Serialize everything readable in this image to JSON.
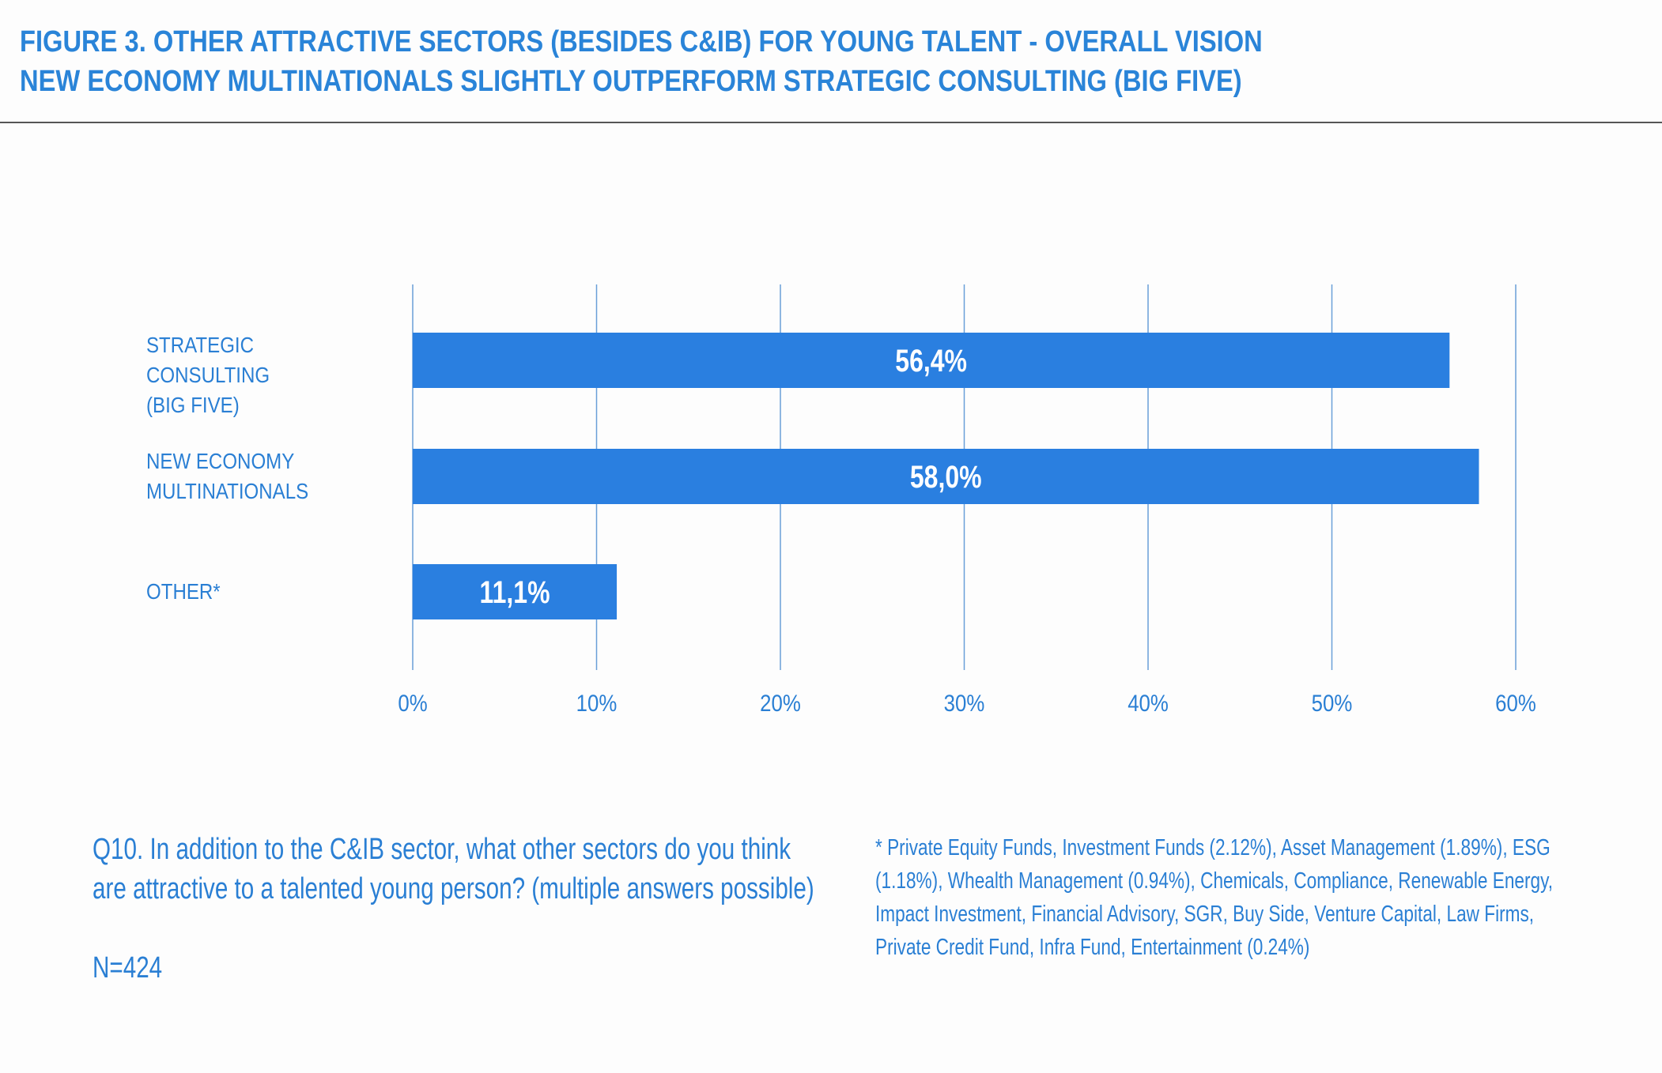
{
  "header": {
    "line1": "FIGURE 3. OTHER ATTRACTIVE SECTORS (BESIDES C&IB) FOR YOUNG TALENT - OVERALL VISION",
    "line2": "NEW ECONOMY MULTINATIONALS SLIGHTLY OUTPERFORM STRATEGIC CONSULTING (BIG FIVE)"
  },
  "colors": {
    "bar": "#2a7fe0",
    "grid": "#6a9fd8",
    "text": "#2a7fd4"
  },
  "chart_data": {
    "type": "bar",
    "orientation": "horizontal",
    "categories": [
      [
        "STRATEGIC CONSULTING",
        "(BIG FIVE)"
      ],
      [
        "NEW ECONOMY",
        "MULTINATIONALS"
      ],
      [
        "OTHER*"
      ]
    ],
    "values": [
      56.4,
      58.0,
      11.1
    ],
    "value_labels": [
      "56,4%",
      "58,0%",
      "11,1%"
    ],
    "xlim": [
      0,
      60
    ],
    "xticks": [
      0,
      10,
      20,
      30,
      40,
      50,
      60
    ],
    "xtick_labels": [
      "0%",
      "10%",
      "20%",
      "30%",
      "40%",
      "50%",
      "60%"
    ],
    "grid": true,
    "title": "",
    "xlabel": "",
    "ylabel": ""
  },
  "footer": {
    "question_lines": [
      "Q10. In addition to the C&IB sector, what other sectors do you think",
      "are attractive to a talented young person? (multiple answers possible)"
    ],
    "sample": "N=424",
    "footnote_lines": [
      "* Private Equity Funds, Investment Funds (2.12%), Asset Management (1.89%), ESG",
      "(1.18%), Whealth Management (0.94%), Chemicals, Compliance, Renewable Energy,",
      "Impact Investment, Financial Advisory, SGR, Buy Side, Venture Capital, Law Firms,",
      "Private Credit Fund, Infra Fund, Entertainment (0.24%)"
    ]
  }
}
